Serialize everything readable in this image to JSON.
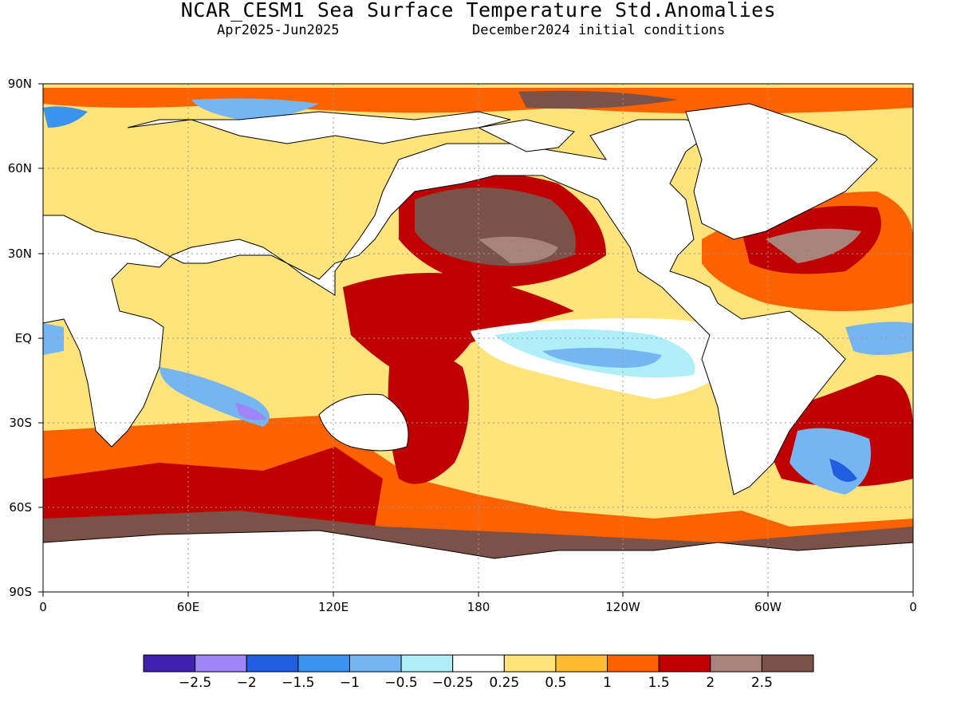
{
  "header": {
    "title": "NCAR_CESM1 Sea Surface Temperature Std.Anomalies",
    "period": "Apr2025-Jun2025",
    "init": "December2024 initial conditions"
  },
  "map": {
    "lat_labels": [
      "90N",
      "60N",
      "30N",
      "EQ",
      "30S",
      "60S",
      "90S"
    ],
    "lon_labels": [
      "0",
      "60E",
      "120E",
      "180",
      "120W",
      "60W",
      "0"
    ]
  },
  "colorbar": {
    "colors": [
      "#3f20b0",
      "#9f85f5",
      "#2060e0",
      "#3a93ee",
      "#74b5f2",
      "#b0eef8",
      "#ffffff",
      "#ffe47c",
      "#ffbb33",
      "#fc6300",
      "#c00000",
      "#a88379",
      "#7a5248"
    ],
    "labels": [
      "−2.5",
      "−2",
      "−1.5",
      "−1",
      "−0.5",
      "−0.25",
      "0.25",
      "0.5",
      "1",
      "1.5",
      "2",
      "2.5"
    ]
  }
}
